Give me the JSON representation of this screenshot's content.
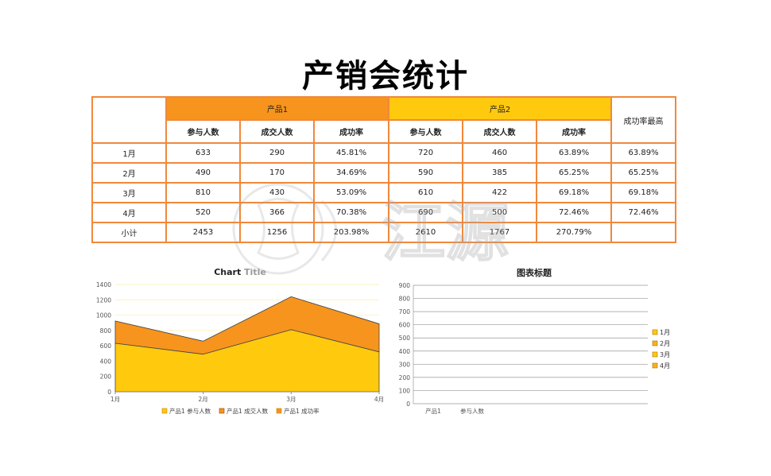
{
  "title": "产销会统计",
  "table": {
    "product1_label": "产品1",
    "product2_label": "产品2",
    "max_rate_label": "成功率最高",
    "col_participants": "参与人数",
    "col_deals": "成交人数",
    "col_rate": "成功率",
    "rows": [
      {
        "label": "1月",
        "p1_participants": "633",
        "p1_deals": "290",
        "p1_rate": "45.81%",
        "p2_participants": "720",
        "p2_deals": "460",
        "p2_rate": "63.89%",
        "max_rate": "63.89%"
      },
      {
        "label": "2月",
        "p1_participants": "490",
        "p1_deals": "170",
        "p1_rate": "34.69%",
        "p2_participants": "590",
        "p2_deals": "385",
        "p2_rate": "65.25%",
        "max_rate": "65.25%"
      },
      {
        "label": "3月",
        "p1_participants": "810",
        "p1_deals": "430",
        "p1_rate": "53.09%",
        "p2_participants": "610",
        "p2_deals": "422",
        "p2_rate": "69.18%",
        "max_rate": "69.18%"
      },
      {
        "label": "4月",
        "p1_participants": "520",
        "p1_deals": "366",
        "p1_rate": "70.38%",
        "p2_participants": "690",
        "p2_deals": "500",
        "p2_rate": "72.46%",
        "max_rate": "72.46%"
      },
      {
        "label": "小计",
        "p1_participants": "2453",
        "p1_deals": "1256",
        "p1_rate": "203.98%",
        "p2_participants": "2610",
        "p2_deals": "1767",
        "p2_rate": "270.79%",
        "max_rate": ""
      }
    ]
  },
  "watermark_text": "江源",
  "chart_data": [
    {
      "type": "area",
      "title_part1": "Chart",
      "title_part2": " Title",
      "categories": [
        "1月",
        "2月",
        "3月",
        "4月"
      ],
      "ylim": [
        0,
        1400
      ],
      "yticks": [
        "0",
        "200",
        "400",
        "600",
        "800",
        "1000",
        "1200",
        "1400"
      ],
      "stacked": true,
      "series": [
        {
          "name": "产品1 参与人数",
          "values": [
            633,
            490,
            810,
            520
          ],
          "color": "#ffc90e"
        },
        {
          "name": "产品1 成交人数",
          "values": [
            290,
            170,
            430,
            366
          ],
          "color": "#f7941d"
        },
        {
          "name": "产品1 成功率",
          "values": [
            0.4581,
            0.3469,
            0.5309,
            0.7038
          ],
          "color": "#f7941d"
        }
      ],
      "legend_position": "bottom",
      "grid": true
    },
    {
      "type": "bar",
      "title": "图表标题",
      "categories": [
        "产品1",
        "参与人数"
      ],
      "ylim": [
        0,
        900
      ],
      "yticks": [
        "0",
        "100",
        "200",
        "300",
        "400",
        "500",
        "600",
        "700",
        "800",
        "900"
      ],
      "series": [
        {
          "name": "1月",
          "color": "#ffc90e"
        },
        {
          "name": "2月",
          "color": "#f7b21d"
        },
        {
          "name": "3月",
          "color": "#ffc90e"
        },
        {
          "name": "4月",
          "color": "#f7b21d"
        }
      ],
      "legend_position": "right",
      "grid": true
    }
  ]
}
